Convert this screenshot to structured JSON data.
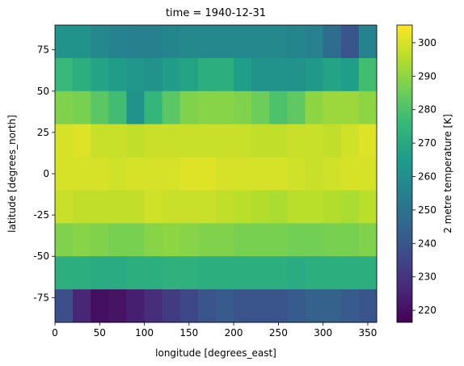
{
  "chart_data": {
    "type": "heatmap",
    "title": "time = 1940-12-31",
    "x_label": "longitude [degrees_east]",
    "y_label": "latitude [degrees_north]",
    "colorbar_label": "2 metre temperature [K]",
    "colormap": "viridis",
    "x": [
      10,
      30,
      50,
      70,
      90,
      110,
      130,
      150,
      170,
      190,
      210,
      230,
      250,
      270,
      290,
      310,
      330,
      350
    ],
    "y": [
      80,
      60,
      40,
      20,
      0,
      -20,
      -40,
      -60,
      -80
    ],
    "z": [
      [
        262,
        262,
        258,
        256,
        255,
        255,
        257,
        258,
        258,
        258,
        258,
        258,
        258,
        257,
        255,
        248,
        240,
        256
      ],
      [
        276,
        272,
        268,
        265,
        263,
        262,
        265,
        268,
        272,
        272,
        266,
        262,
        262,
        262,
        264,
        268,
        266,
        278
      ],
      [
        288,
        287,
        282,
        278,
        262,
        275,
        282,
        288,
        289,
        289,
        288,
        285,
        280,
        283,
        290,
        292,
        292,
        290
      ],
      [
        300,
        301,
        298,
        298,
        297,
        298,
        298,
        298,
        298,
        298,
        298,
        297,
        297,
        298,
        298,
        297,
        299,
        301
      ],
      [
        300,
        300,
        300,
        299,
        300,
        300,
        300,
        301,
        301,
        300,
        300,
        300,
        300,
        299,
        298,
        299,
        300,
        300
      ],
      [
        298,
        297,
        297,
        297,
        297,
        299,
        298,
        298,
        298,
        297,
        296,
        295,
        294,
        296,
        296,
        295,
        294,
        296
      ],
      [
        288,
        289,
        288,
        287,
        287,
        289,
        290,
        289,
        288,
        288,
        287,
        287,
        287,
        286,
        286,
        287,
        287,
        288
      ],
      [
        272,
        272,
        271,
        271,
        272,
        272,
        273,
        273,
        272,
        272,
        272,
        272,
        272,
        271,
        272,
        272,
        272,
        272
      ],
      [
        238,
        226,
        220,
        221,
        224,
        228,
        232,
        236,
        240,
        242,
        240,
        240,
        240,
        242,
        244,
        244,
        242,
        240
      ]
    ],
    "xlim": [
      0,
      360
    ],
    "ylim": [
      -90,
      90
    ],
    "clim": [
      216.4,
      305.3
    ],
    "xticks": [
      0,
      50,
      100,
      150,
      200,
      250,
      300,
      350
    ],
    "yticks": [
      -75,
      -50,
      -25,
      0,
      25,
      50,
      75
    ],
    "cticks": [
      220,
      230,
      240,
      250,
      260,
      270,
      280,
      290,
      300
    ]
  }
}
